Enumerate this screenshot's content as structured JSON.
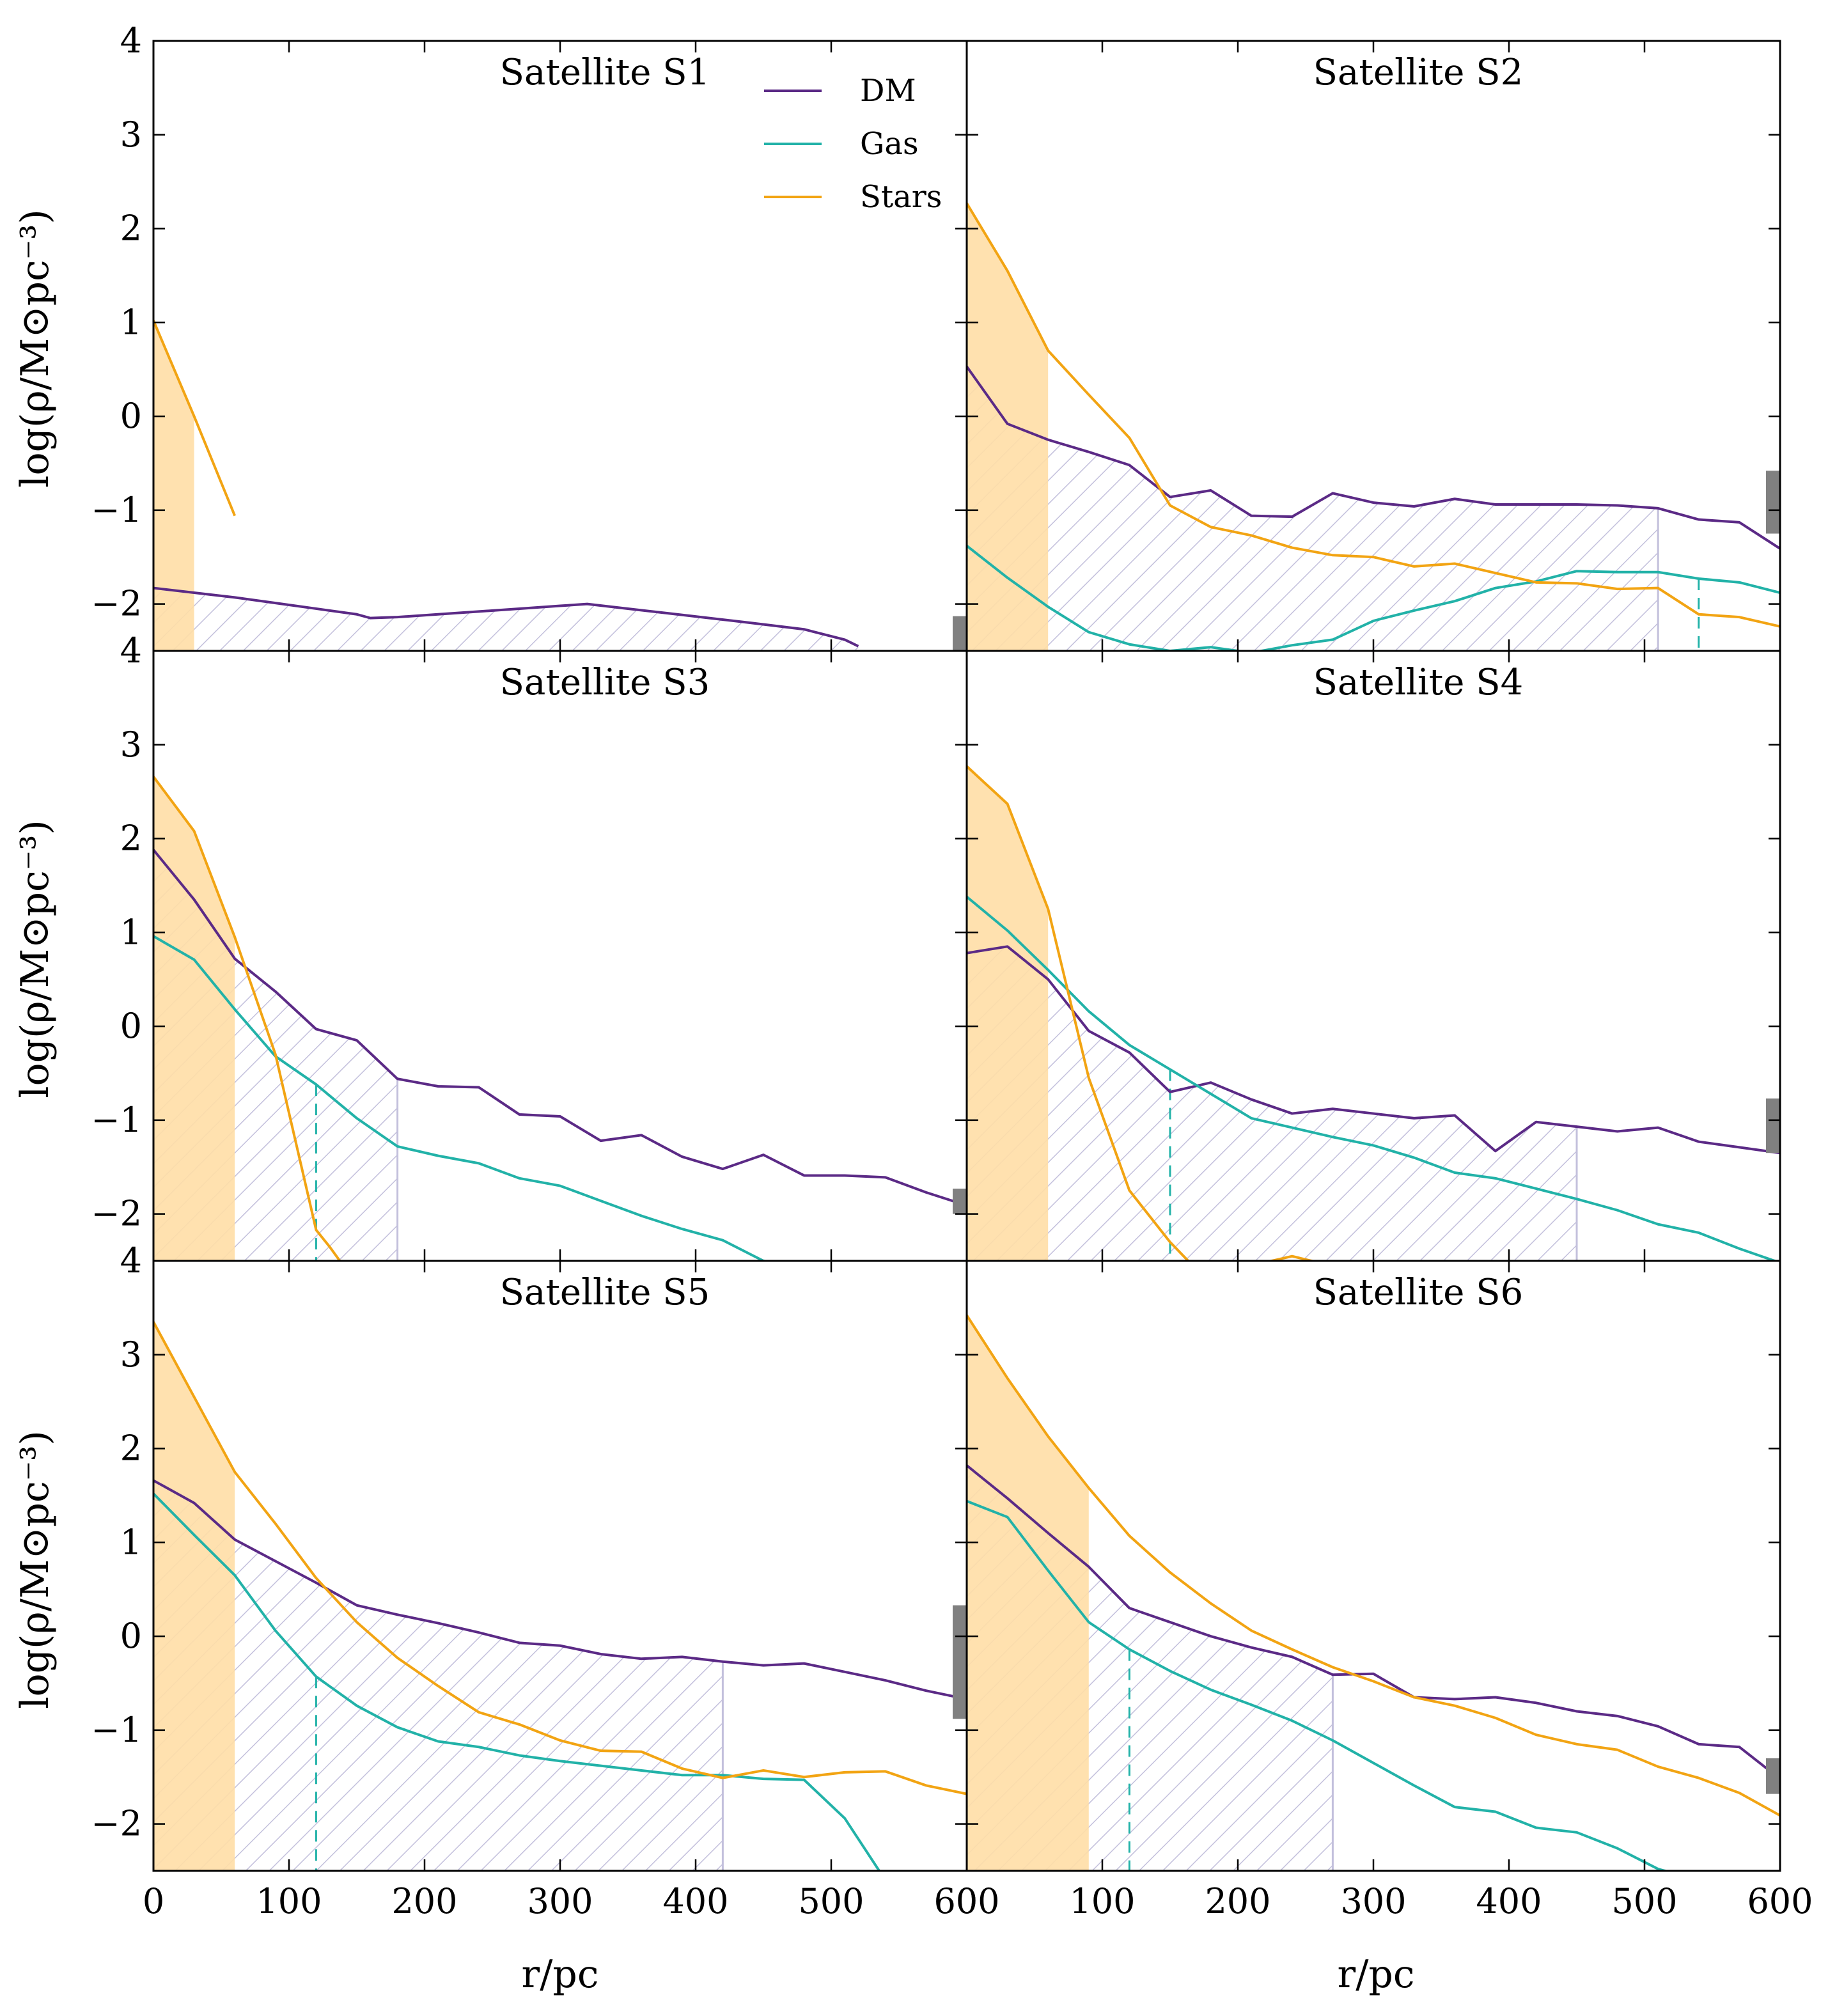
{
  "chart_data": {
    "type": "line",
    "xlabel": "r/pc",
    "ylabel": "log(ρ/M⊙pc⁻³)",
    "xlim": [
      0,
      600
    ],
    "ylim": [
      -2.5,
      4
    ],
    "xticks": [
      0,
      100,
      200,
      300,
      400,
      500,
      600
    ],
    "xtick_labels": [
      "0",
      "100",
      "200",
      "300",
      "400",
      "500",
      "600"
    ],
    "yticks": [
      -2,
      -1,
      0,
      1,
      2,
      3,
      4
    ],
    "ytick_labels": [
      "−2",
      "−1",
      "0",
      "1",
      "2",
      "3",
      "4"
    ],
    "legend": {
      "location": "top-right of first panel",
      "entries": [
        {
          "label": "DM",
          "color": "#5b2a86"
        },
        {
          "label": "Gas",
          "color": "#22b2a8"
        },
        {
          "label": "Stars",
          "color": "#f2a413"
        }
      ]
    },
    "colors": {
      "dm": "#5b2a86",
      "gas": "#22b2a8",
      "stars": "#f2a413",
      "stars_fill": "#ffdea6",
      "hatch": "#c3c0dc",
      "bar": "#808080"
    },
    "panels": [
      {
        "title": "Satellite S1",
        "series": [
          {
            "name": "DM",
            "x": [
              0,
              30,
              60,
              90,
              120,
              150,
              160,
              180,
              210,
              240,
              270,
              300,
              320,
              350,
              380,
              410,
              440,
              480,
              510,
              520
            ],
            "y": [
              -1.83,
              -1.88,
              -1.93,
              -1.99,
              -2.05,
              -2.11,
              -2.15,
              -2.14,
              -2.11,
              -2.08,
              -2.05,
              -2.02,
              -2.0,
              -2.05,
              -2.1,
              -2.15,
              -2.2,
              -2.27,
              -2.38,
              -2.45
            ]
          },
          {
            "name": "Gas",
            "x": [],
            "y": []
          },
          {
            "name": "Stars",
            "x": [
              0,
              30,
              60
            ],
            "y": [
              1.02,
              0.0,
              -1.06
            ]
          }
        ],
        "stars_fill_r": 30,
        "dm_hatch_r": null,
        "gas_dashed_r": null,
        "bar_range": [
          -2.5,
          -2.13
        ]
      },
      {
        "title": "Satellite S2",
        "series": [
          {
            "name": "DM",
            "x": [
              0,
              30,
              60,
              90,
              120,
              150,
              180,
              210,
              240,
              270,
              300,
              330,
              360,
              390,
              420,
              450,
              480,
              510,
              540,
              570,
              600
            ],
            "y": [
              0.53,
              -0.08,
              -0.25,
              -0.38,
              -0.52,
              -0.86,
              -0.79,
              -1.06,
              -1.07,
              -0.82,
              -0.92,
              -0.96,
              -0.88,
              -0.94,
              -0.94,
              -0.94,
              -0.95,
              -0.98,
              -1.1,
              -1.13,
              -1.41
            ]
          },
          {
            "name": "Gas",
            "x": [
              0,
              30,
              60,
              90,
              120,
              150,
              180,
              210,
              240,
              270,
              300,
              330,
              360,
              390,
              420,
              450,
              480,
              510,
              540,
              570,
              600
            ],
            "y": [
              -1.38,
              -1.72,
              -2.03,
              -2.3,
              -2.43,
              -2.5,
              -2.46,
              -2.52,
              -2.44,
              -2.38,
              -2.18,
              -2.07,
              -1.97,
              -1.83,
              -1.76,
              -1.65,
              -1.66,
              -1.66,
              -1.73,
              -1.77,
              -1.88
            ]
          },
          {
            "name": "Stars",
            "x": [
              0,
              30,
              60,
              90,
              120,
              150,
              180,
              210,
              240,
              270,
              300,
              330,
              360,
              390,
              420,
              450,
              480,
              510,
              540,
              570,
              600
            ],
            "y": [
              2.27,
              1.55,
              0.7,
              0.23,
              -0.23,
              -0.95,
              -1.18,
              -1.27,
              -1.4,
              -1.48,
              -1.5,
              -1.6,
              -1.57,
              -1.67,
              -1.77,
              -1.78,
              -1.84,
              -1.83,
              -2.11,
              -2.14,
              -2.24
            ]
          }
        ],
        "stars_fill_r": 60,
        "dm_hatch_r": 510,
        "gas_dashed_r": 540,
        "bar_range": [
          -1.25,
          -0.58
        ]
      },
      {
        "title": "Satellite S3",
        "series": [
          {
            "name": "DM",
            "x": [
              0,
              30,
              60,
              90,
              120,
              150,
              180,
              210,
              240,
              270,
              300,
              330,
              360,
              390,
              420,
              450,
              480,
              510,
              540,
              570,
              600
            ],
            "y": [
              1.88,
              1.35,
              0.72,
              0.37,
              -0.03,
              -0.15,
              -0.56,
              -0.64,
              -0.65,
              -0.94,
              -0.96,
              -1.22,
              -1.16,
              -1.39,
              -1.52,
              -1.37,
              -1.59,
              -1.59,
              -1.61,
              -1.77,
              -1.91
            ]
          },
          {
            "name": "Gas",
            "x": [
              0,
              30,
              60,
              90,
              120,
              150,
              180,
              210,
              240,
              270,
              300,
              330,
              360,
              390,
              420,
              450,
              480
            ],
            "y": [
              0.96,
              0.71,
              0.18,
              -0.32,
              -0.62,
              -0.98,
              -1.28,
              -1.38,
              -1.46,
              -1.62,
              -1.7,
              -1.86,
              -2.02,
              -2.16,
              -2.28,
              -2.5,
              -2.6
            ]
          },
          {
            "name": "Stars",
            "x": [
              0,
              30,
              60,
              90,
              120,
              130,
              140
            ],
            "y": [
              2.66,
              2.08,
              0.95,
              -0.3,
              -2.17,
              -2.35,
              -2.55
            ]
          }
        ],
        "stars_fill_r": 60,
        "dm_hatch_r": 180,
        "gas_dashed_r": 120,
        "bar_range": [
          -2.0,
          -1.73
        ]
      },
      {
        "title": "Satellite S4",
        "series": [
          {
            "name": "DM",
            "x": [
              0,
              30,
              60,
              90,
              120,
              150,
              180,
              210,
              240,
              270,
              300,
              330,
              360,
              390,
              420,
              450,
              480,
              510,
              540,
              570,
              600
            ],
            "y": [
              0.78,
              0.85,
              0.5,
              -0.05,
              -0.28,
              -0.7,
              -0.6,
              -0.78,
              -0.93,
              -0.88,
              -0.93,
              -0.98,
              -0.95,
              -1.33,
              -1.02,
              -1.07,
              -1.12,
              -1.08,
              -1.23,
              -1.29,
              -1.35
            ]
          },
          {
            "name": "Gas",
            "x": [
              0,
              30,
              60,
              90,
              120,
              150,
              180,
              210,
              240,
              270,
              300,
              330,
              360,
              390,
              420,
              450,
              480,
              510,
              540,
              570,
              600
            ],
            "y": [
              1.38,
              1.02,
              0.6,
              0.16,
              -0.2,
              -0.46,
              -0.72,
              -0.98,
              -1.08,
              -1.18,
              -1.27,
              -1.4,
              -1.56,
              -1.62,
              -1.73,
              -1.84,
              -1.96,
              -2.11,
              -2.2,
              -2.37,
              -2.52
            ]
          },
          {
            "name": "Stars",
            "x": [
              0,
              30,
              60,
              90,
              120,
              150,
              170,
              210,
              240,
              260
            ],
            "y": [
              2.77,
              2.37,
              1.25,
              -0.55,
              -1.75,
              -2.3,
              -2.6,
              -2.55,
              -2.45,
              -2.52
            ]
          }
        ],
        "stars_fill_r": 60,
        "dm_hatch_r": 450,
        "gas_dashed_r": 150,
        "bar_range": [
          -1.35,
          -0.77
        ]
      },
      {
        "title": "Satellite S5",
        "series": [
          {
            "name": "DM",
            "x": [
              0,
              30,
              60,
              90,
              120,
              150,
              180,
              210,
              240,
              270,
              300,
              330,
              360,
              390,
              420,
              450,
              480,
              510,
              540,
              570,
              600
            ],
            "y": [
              1.66,
              1.42,
              1.03,
              0.8,
              0.57,
              0.33,
              0.23,
              0.14,
              0.04,
              -0.07,
              -0.1,
              -0.19,
              -0.24,
              -0.22,
              -0.27,
              -0.31,
              -0.29,
              -0.38,
              -0.47,
              -0.58,
              -0.67
            ]
          },
          {
            "name": "Gas",
            "x": [
              0,
              30,
              60,
              90,
              120,
              150,
              180,
              210,
              240,
              270,
              300,
              330,
              360,
              390,
              420,
              450,
              480,
              510,
              540
            ],
            "y": [
              1.52,
              1.08,
              0.65,
              0.06,
              -0.43,
              -0.74,
              -0.97,
              -1.12,
              -1.18,
              -1.27,
              -1.33,
              -1.38,
              -1.43,
              -1.48,
              -1.48,
              -1.52,
              -1.53,
              -1.94,
              -2.6
            ]
          },
          {
            "name": "Stars",
            "x": [
              0,
              30,
              60,
              90,
              120,
              150,
              180,
              210,
              240,
              270,
              300,
              330,
              360,
              390,
              420,
              450,
              480,
              510,
              540,
              570,
              600
            ],
            "y": [
              3.35,
              2.55,
              1.75,
              1.2,
              0.62,
              0.15,
              -0.23,
              -0.53,
              -0.81,
              -0.94,
              -1.11,
              -1.22,
              -1.23,
              -1.41,
              -1.51,
              -1.43,
              -1.5,
              -1.45,
              -1.44,
              -1.59,
              -1.68
            ]
          }
        ],
        "stars_fill_r": 60,
        "dm_hatch_r": 420,
        "gas_dashed_r": 120,
        "bar_range": [
          -0.88,
          0.33
        ]
      },
      {
        "title": "Satellite S6",
        "series": [
          {
            "name": "DM",
            "x": [
              0,
              30,
              60,
              90,
              120,
              150,
              180,
              210,
              240,
              270,
              300,
              330,
              360,
              390,
              420,
              450,
              480,
              510,
              540,
              570,
              600
            ],
            "y": [
              1.82,
              1.47,
              1.1,
              0.74,
              0.3,
              0.15,
              0.0,
              -0.12,
              -0.22,
              -0.41,
              -0.4,
              -0.65,
              -0.67,
              -0.65,
              -0.71,
              -0.8,
              -0.85,
              -0.96,
              -1.15,
              -1.18,
              -1.52
            ]
          },
          {
            "name": "Gas",
            "x": [
              0,
              30,
              60,
              90,
              120,
              150,
              180,
              210,
              240,
              270,
              300,
              330,
              360,
              390,
              420,
              450,
              480,
              510,
              540
            ],
            "y": [
              1.44,
              1.27,
              0.7,
              0.15,
              -0.14,
              -0.37,
              -0.57,
              -0.73,
              -0.9,
              -1.11,
              -1.35,
              -1.59,
              -1.82,
              -1.87,
              -2.04,
              -2.09,
              -2.26,
              -2.48,
              -2.6
            ]
          },
          {
            "name": "Stars",
            "x": [
              0,
              30,
              60,
              90,
              120,
              150,
              180,
              210,
              240,
              270,
              300,
              330,
              360,
              390,
              420,
              450,
              480,
              510,
              540,
              570,
              600
            ],
            "y": [
              3.42,
              2.75,
              2.13,
              1.58,
              1.07,
              0.68,
              0.35,
              0.06,
              -0.14,
              -0.33,
              -0.48,
              -0.65,
              -0.74,
              -0.87,
              -1.05,
              -1.15,
              -1.21,
              -1.39,
              -1.51,
              -1.67,
              -1.91
            ]
          }
        ],
        "stars_fill_r": 90,
        "dm_hatch_r": 270,
        "gas_dashed_r": 120,
        "bar_range": [
          -1.68,
          -1.3
        ]
      }
    ]
  }
}
